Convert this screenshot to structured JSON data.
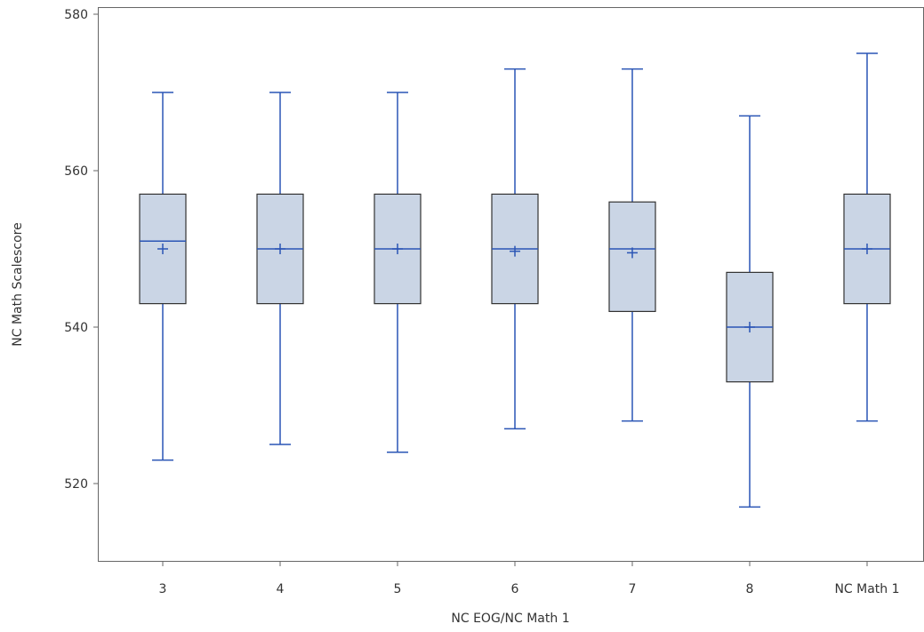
{
  "chart_data": {
    "type": "box",
    "title": "",
    "xlabel": "NC EOG/NC Math 1",
    "ylabel": "NC Math Scalescore",
    "ylim": [
      510,
      580
    ],
    "yticks": [
      520,
      540,
      560,
      580
    ],
    "grid": false,
    "colors": {
      "box_fill": "#cad5e5",
      "box_edge": "#333333",
      "whisker": "#2a55b5",
      "frame": "#666666"
    },
    "categories": [
      "3",
      "4",
      "5",
      "6",
      "7",
      "8",
      "NC Math 1"
    ],
    "series": [
      {
        "category": "3",
        "min": 523,
        "q1": 543,
        "median": 551,
        "q3": 557,
        "max": 570,
        "mean": 550
      },
      {
        "category": "4",
        "min": 525,
        "q1": 543,
        "median": 550,
        "q3": 557,
        "max": 570,
        "mean": 550
      },
      {
        "category": "5",
        "min": 524,
        "q1": 543,
        "median": 550,
        "q3": 557,
        "max": 570,
        "mean": 550
      },
      {
        "category": "6",
        "min": 527,
        "q1": 543,
        "median": 550,
        "q3": 557,
        "max": 573,
        "mean": 549.7
      },
      {
        "category": "7",
        "min": 528,
        "q1": 542,
        "median": 550,
        "q3": 556,
        "max": 573,
        "mean": 549.5
      },
      {
        "category": "8",
        "min": 517,
        "q1": 533,
        "median": 540,
        "q3": 547,
        "max": 567,
        "mean": 540
      },
      {
        "category": "NC Math 1",
        "min": 528,
        "q1": 543,
        "median": 550,
        "q3": 557,
        "max": 575,
        "mean": 550
      }
    ]
  }
}
